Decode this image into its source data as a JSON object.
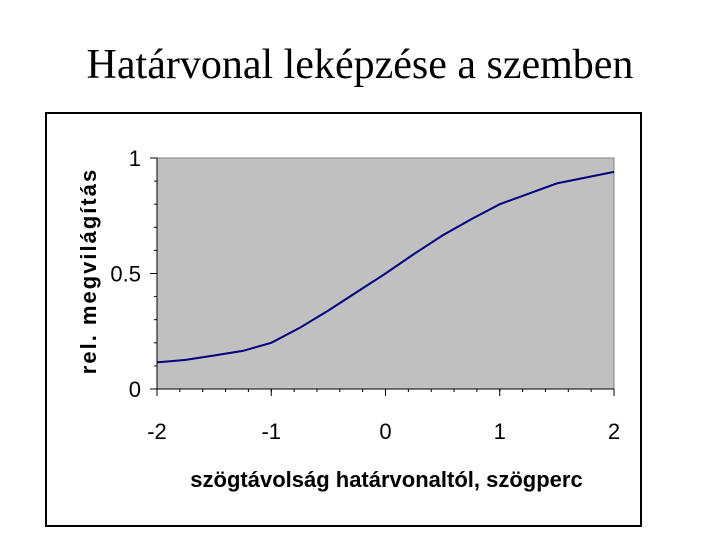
{
  "slide": {
    "title": "Határvonal leképzése a szemben"
  },
  "chart_data": {
    "type": "line",
    "xlabel": "szögtávolság határvonaltól, szögperc",
    "ylabel": "rel. megvilágítás",
    "xlim": [
      -2,
      2
    ],
    "ylim": [
      0,
      1
    ],
    "x_ticks": [
      -2,
      -1,
      0,
      1,
      2
    ],
    "x_tick_labels": [
      "-2",
      "-1",
      "0",
      "1",
      "2"
    ],
    "y_ticks": [
      0,
      0.5,
      1
    ],
    "y_tick_labels": [
      "0",
      "0.5",
      "1"
    ],
    "grid": false,
    "plot_background": "#c0c0c0",
    "line_color": "#000080",
    "series": [
      {
        "x": [
          -2,
          -1.75,
          -1.5,
          -1.25,
          -1,
          -0.75,
          -0.5,
          -0.25,
          0,
          0.25,
          0.5,
          0.75,
          1,
          1.25,
          1.5,
          1.75,
          2
        ],
        "values": [
          0.115,
          0.126,
          0.145,
          0.165,
          0.2,
          0.265,
          0.34,
          0.42,
          0.5,
          0.585,
          0.665,
          0.735,
          0.8,
          0.845,
          0.89,
          0.915,
          0.94
        ]
      }
    ]
  }
}
